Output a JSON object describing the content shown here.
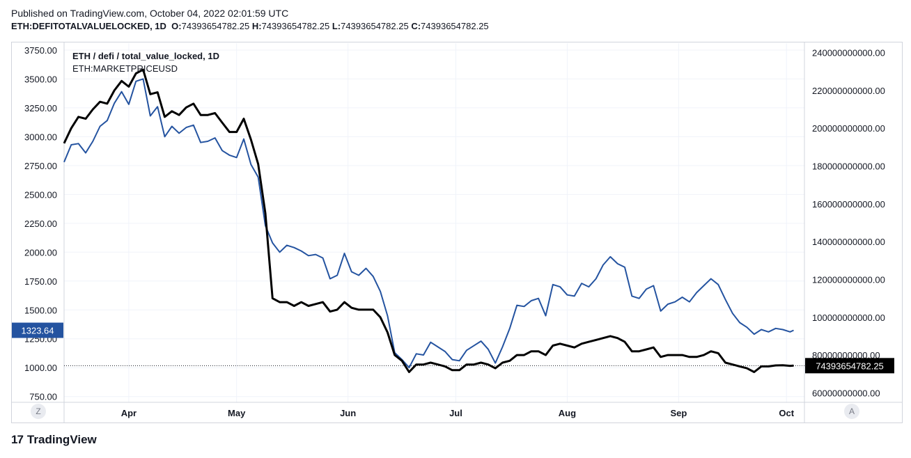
{
  "header": {
    "published": "Published on TradingView.com, October 04, 2022 02:01:59 UTC",
    "symbol": "ETH:DEFITOTALVALUELOCKED, 1D",
    "o_label": "O:",
    "o_value": "74393654782.25",
    "h_label": "H:",
    "h_value": "74393654782.25",
    "l_label": "L:",
    "l_value": "74393654782.25",
    "c_label": "C:",
    "c_value": "74393654782.25"
  },
  "legend": {
    "title": "ETH / defi / total_value_locked, 1D",
    "subtitle": "ETH:MARKETPRICEUSD"
  },
  "buttons": {
    "z": "Z",
    "a": "A"
  },
  "footer": {
    "logo": "17",
    "brand": "TradingView"
  },
  "colors": {
    "tvl": "#000000",
    "price": "#2453a0",
    "last_price_badge": "#2453a0",
    "last_tvl_badge": "#000000"
  },
  "chart_data": {
    "type": "line",
    "x_ticks": [
      "Apr",
      "May",
      "Jun",
      "Jul",
      "Aug",
      "Sep",
      "Oct"
    ],
    "left_axis": {
      "ticks": [
        "3750.00",
        "3500.00",
        "3250.00",
        "3000.00",
        "2750.00",
        "2500.00",
        "2250.00",
        "2000.00",
        "1750.00",
        "1500.00",
        "1250.00",
        "1000.00",
        "750.00"
      ],
      "range": [
        700,
        3810
      ]
    },
    "right_axis": {
      "ticks": [
        "240000000000.00",
        "220000000000.00",
        "200000000000.00",
        "180000000000.00",
        "160000000000.00",
        "140000000000.00",
        "120000000000.00",
        "100000000000.00",
        "80000000000.00",
        "60000000000.00"
      ],
      "range": [
        55000000000,
        245000000000
      ]
    },
    "last_price_label": "1323.64",
    "last_tvl_label": "74393654782.25",
    "x_range": [
      "2022-03-14",
      "2022-10-06"
    ],
    "series": [
      {
        "axis": "left",
        "points": [
          [
            "2022-03-14",
            2780
          ],
          [
            "2022-03-16",
            2930
          ],
          [
            "2022-03-18",
            2940
          ],
          [
            "2022-03-20",
            2860
          ],
          [
            "2022-03-22",
            2960
          ],
          [
            "2022-03-24",
            3090
          ],
          [
            "2022-03-26",
            3140
          ],
          [
            "2022-03-28",
            3290
          ],
          [
            "2022-03-30",
            3390
          ],
          [
            "2022-04-01",
            3280
          ],
          [
            "2022-04-03",
            3480
          ],
          [
            "2022-04-05",
            3500
          ],
          [
            "2022-04-07",
            3180
          ],
          [
            "2022-04-09",
            3260
          ],
          [
            "2022-04-11",
            3000
          ],
          [
            "2022-04-13",
            3090
          ],
          [
            "2022-04-15",
            3030
          ],
          [
            "2022-04-17",
            3080
          ],
          [
            "2022-04-19",
            3100
          ],
          [
            "2022-04-21",
            2950
          ],
          [
            "2022-04-23",
            2960
          ],
          [
            "2022-04-25",
            2990
          ],
          [
            "2022-04-27",
            2880
          ],
          [
            "2022-04-29",
            2840
          ],
          [
            "2022-05-01",
            2820
          ],
          [
            "2022-05-03",
            2980
          ],
          [
            "2022-05-05",
            2760
          ],
          [
            "2022-05-07",
            2650
          ],
          [
            "2022-05-09",
            2230
          ],
          [
            "2022-05-11",
            2080
          ],
          [
            "2022-05-13",
            2000
          ],
          [
            "2022-05-15",
            2060
          ],
          [
            "2022-05-17",
            2040
          ],
          [
            "2022-05-19",
            2010
          ],
          [
            "2022-05-21",
            1970
          ],
          [
            "2022-05-23",
            1980
          ],
          [
            "2022-05-25",
            1950
          ],
          [
            "2022-05-27",
            1770
          ],
          [
            "2022-05-29",
            1800
          ],
          [
            "2022-05-31",
            1990
          ],
          [
            "2022-06-02",
            1830
          ],
          [
            "2022-06-04",
            1800
          ],
          [
            "2022-06-06",
            1860
          ],
          [
            "2022-06-08",
            1790
          ],
          [
            "2022-06-10",
            1660
          ],
          [
            "2022-06-12",
            1450
          ],
          [
            "2022-06-14",
            1130
          ],
          [
            "2022-06-16",
            1070
          ],
          [
            "2022-06-18",
            1000
          ],
          [
            "2022-06-20",
            1120
          ],
          [
            "2022-06-22",
            1110
          ],
          [
            "2022-06-24",
            1220
          ],
          [
            "2022-06-26",
            1180
          ],
          [
            "2022-06-28",
            1140
          ],
          [
            "2022-06-30",
            1070
          ],
          [
            "2022-07-02",
            1060
          ],
          [
            "2022-07-04",
            1150
          ],
          [
            "2022-07-06",
            1190
          ],
          [
            "2022-07-08",
            1230
          ],
          [
            "2022-07-10",
            1160
          ],
          [
            "2022-07-12",
            1040
          ],
          [
            "2022-07-14",
            1180
          ],
          [
            "2022-07-16",
            1340
          ],
          [
            "2022-07-18",
            1540
          ],
          [
            "2022-07-20",
            1530
          ],
          [
            "2022-07-22",
            1580
          ],
          [
            "2022-07-24",
            1600
          ],
          [
            "2022-07-26",
            1450
          ],
          [
            "2022-07-28",
            1720
          ],
          [
            "2022-07-30",
            1700
          ],
          [
            "2022-08-01",
            1630
          ],
          [
            "2022-08-03",
            1620
          ],
          [
            "2022-08-05",
            1730
          ],
          [
            "2022-08-07",
            1700
          ],
          [
            "2022-08-09",
            1770
          ],
          [
            "2022-08-11",
            1890
          ],
          [
            "2022-08-13",
            1960
          ],
          [
            "2022-08-15",
            1900
          ],
          [
            "2022-08-17",
            1870
          ],
          [
            "2022-08-19",
            1620
          ],
          [
            "2022-08-21",
            1600
          ],
          [
            "2022-08-23",
            1680
          ],
          [
            "2022-08-25",
            1710
          ],
          [
            "2022-08-27",
            1490
          ],
          [
            "2022-08-29",
            1550
          ],
          [
            "2022-08-31",
            1570
          ],
          [
            "2022-09-02",
            1610
          ],
          [
            "2022-09-04",
            1570
          ],
          [
            "2022-09-06",
            1650
          ],
          [
            "2022-09-08",
            1710
          ],
          [
            "2022-09-10",
            1770
          ],
          [
            "2022-09-12",
            1720
          ],
          [
            "2022-09-14",
            1590
          ],
          [
            "2022-09-16",
            1470
          ],
          [
            "2022-09-18",
            1390
          ],
          [
            "2022-09-20",
            1350
          ],
          [
            "2022-09-22",
            1290
          ],
          [
            "2022-09-24",
            1330
          ],
          [
            "2022-09-26",
            1310
          ],
          [
            "2022-09-28",
            1340
          ],
          [
            "2022-09-30",
            1330
          ],
          [
            "2022-10-02",
            1310
          ],
          [
            "2022-10-03",
            1323.64
          ]
        ]
      },
      {
        "axis": "right",
        "points": [
          [
            "2022-03-14",
            192000000000
          ],
          [
            "2022-03-16",
            200000000000
          ],
          [
            "2022-03-18",
            206000000000
          ],
          [
            "2022-03-20",
            205000000000
          ],
          [
            "2022-03-22",
            210000000000
          ],
          [
            "2022-03-24",
            214000000000
          ],
          [
            "2022-03-26",
            213000000000
          ],
          [
            "2022-03-28",
            220000000000
          ],
          [
            "2022-03-30",
            225000000000
          ],
          [
            "2022-04-01",
            222000000000
          ],
          [
            "2022-04-03",
            229000000000
          ],
          [
            "2022-04-05",
            231000000000
          ],
          [
            "2022-04-07",
            218000000000
          ],
          [
            "2022-04-09",
            219000000000
          ],
          [
            "2022-04-11",
            206000000000
          ],
          [
            "2022-04-13",
            209000000000
          ],
          [
            "2022-04-15",
            207000000000
          ],
          [
            "2022-04-17",
            211000000000
          ],
          [
            "2022-04-19",
            213000000000
          ],
          [
            "2022-04-21",
            207000000000
          ],
          [
            "2022-04-23",
            207000000000
          ],
          [
            "2022-04-25",
            208000000000
          ],
          [
            "2022-04-27",
            203000000000
          ],
          [
            "2022-04-29",
            198000000000
          ],
          [
            "2022-05-01",
            198000000000
          ],
          [
            "2022-05-03",
            205000000000
          ],
          [
            "2022-05-05",
            194000000000
          ],
          [
            "2022-05-07",
            181000000000
          ],
          [
            "2022-05-09",
            155000000000
          ],
          [
            "2022-05-11",
            110000000000
          ],
          [
            "2022-05-13",
            108000000000
          ],
          [
            "2022-05-15",
            108000000000
          ],
          [
            "2022-05-17",
            106000000000
          ],
          [
            "2022-05-19",
            108000000000
          ],
          [
            "2022-05-21",
            106000000000
          ],
          [
            "2022-05-23",
            107000000000
          ],
          [
            "2022-05-25",
            108000000000
          ],
          [
            "2022-05-27",
            103000000000
          ],
          [
            "2022-05-29",
            104000000000
          ],
          [
            "2022-05-31",
            108000000000
          ],
          [
            "2022-06-02",
            105000000000
          ],
          [
            "2022-06-04",
            104000000000
          ],
          [
            "2022-06-06",
            104000000000
          ],
          [
            "2022-06-08",
            104000000000
          ],
          [
            "2022-06-10",
            100000000000
          ],
          [
            "2022-06-12",
            92000000000
          ],
          [
            "2022-06-14",
            80000000000
          ],
          [
            "2022-06-16",
            77000000000
          ],
          [
            "2022-06-18",
            71000000000
          ],
          [
            "2022-06-20",
            75000000000
          ],
          [
            "2022-06-22",
            75000000000
          ],
          [
            "2022-06-24",
            76000000000
          ],
          [
            "2022-06-26",
            75000000000
          ],
          [
            "2022-06-28",
            74000000000
          ],
          [
            "2022-06-30",
            72000000000
          ],
          [
            "2022-07-02",
            72000000000
          ],
          [
            "2022-07-04",
            75000000000
          ],
          [
            "2022-07-06",
            75000000000
          ],
          [
            "2022-07-08",
            76000000000
          ],
          [
            "2022-07-10",
            75000000000
          ],
          [
            "2022-07-12",
            73000000000
          ],
          [
            "2022-07-14",
            76000000000
          ],
          [
            "2022-07-16",
            77000000000
          ],
          [
            "2022-07-18",
            80000000000
          ],
          [
            "2022-07-20",
            80000000000
          ],
          [
            "2022-07-22",
            82000000000
          ],
          [
            "2022-07-24",
            82000000000
          ],
          [
            "2022-07-26",
            80000000000
          ],
          [
            "2022-07-28",
            85000000000
          ],
          [
            "2022-07-30",
            86000000000
          ],
          [
            "2022-08-01",
            85000000000
          ],
          [
            "2022-08-03",
            84000000000
          ],
          [
            "2022-08-05",
            86000000000
          ],
          [
            "2022-08-07",
            87000000000
          ],
          [
            "2022-08-09",
            88000000000
          ],
          [
            "2022-08-11",
            89000000000
          ],
          [
            "2022-08-13",
            90000000000
          ],
          [
            "2022-08-15",
            89000000000
          ],
          [
            "2022-08-17",
            87000000000
          ],
          [
            "2022-08-19",
            82000000000
          ],
          [
            "2022-08-21",
            82000000000
          ],
          [
            "2022-08-23",
            83000000000
          ],
          [
            "2022-08-25",
            84000000000
          ],
          [
            "2022-08-27",
            79000000000
          ],
          [
            "2022-08-29",
            80000000000
          ],
          [
            "2022-08-31",
            80000000000
          ],
          [
            "2022-09-02",
            80000000000
          ],
          [
            "2022-09-04",
            79000000000
          ],
          [
            "2022-09-06",
            79000000000
          ],
          [
            "2022-09-08",
            80000000000
          ],
          [
            "2022-09-10",
            82000000000
          ],
          [
            "2022-09-12",
            81000000000
          ],
          [
            "2022-09-14",
            76000000000
          ],
          [
            "2022-09-16",
            75000000000
          ],
          [
            "2022-09-18",
            74000000000
          ],
          [
            "2022-09-20",
            73000000000
          ],
          [
            "2022-09-22",
            71000000000
          ],
          [
            "2022-09-24",
            74000000000
          ],
          [
            "2022-09-26",
            74000000000
          ],
          [
            "2022-09-28",
            74500000000
          ],
          [
            "2022-09-30",
            74600000000
          ],
          [
            "2022-10-02",
            74300000000
          ],
          [
            "2022-10-03",
            74393654782.25
          ]
        ]
      }
    ]
  }
}
